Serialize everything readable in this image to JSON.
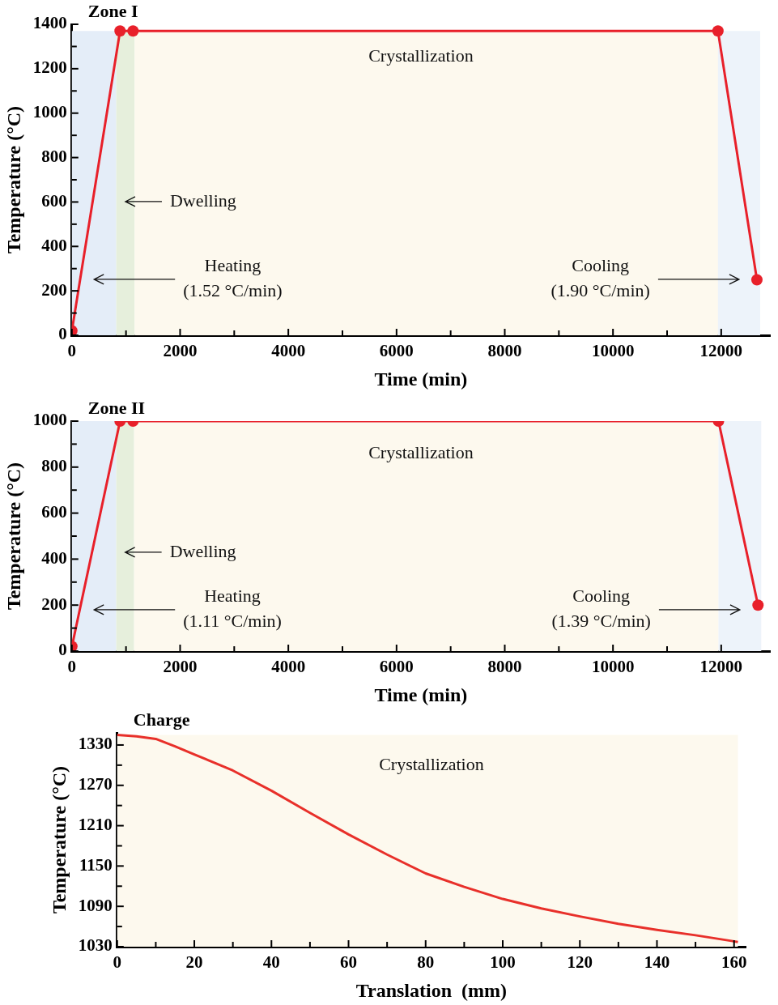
{
  "chart_data": [
    {
      "type": "line",
      "title": "Zone I",
      "xlabel": "Time (min)",
      "ylabel": "Temperature (°C)",
      "marker": "circle",
      "line_style": "solid",
      "grid": false,
      "legend": false,
      "x": [
        0,
        890,
        1130,
        11940,
        12660
      ],
      "series": [
        {
          "color": "#e8202a",
          "values": [
            20,
            1370,
            1370,
            1370,
            250
          ]
        }
      ],
      "xlim": [
        0,
        12900
      ],
      "ylim": [
        0,
        1400
      ],
      "xticks": [
        0,
        {
          "value": 1000,
          "label": null
        },
        2000,
        {
          "value": 3000,
          "label": null
        },
        4000,
        {
          "value": 5000,
          "label": null
        },
        6000,
        {
          "value": 7000,
          "label": null
        },
        8000,
        {
          "value": 9000,
          "label": null
        },
        10000,
        {
          "value": 11000,
          "label": null
        },
        12000
      ],
      "yticks": [
        0,
        {
          "value": 100,
          "label": null
        },
        200,
        {
          "value": 300,
          "label": null
        },
        400,
        {
          "value": 500,
          "label": null
        },
        600,
        {
          "value": 700,
          "label": null
        },
        800,
        {
          "value": 900,
          "label": null
        },
        1000,
        {
          "value": 1100,
          "label": null
        },
        1200,
        {
          "value": 1300,
          "label": null
        },
        1400
      ],
      "bands": [
        {
          "axis": "x",
          "from": 0,
          "to": 820,
          "color": "#e4edf8",
          "label": "Heating\n(1.52 °C/min)"
        },
        {
          "axis": "x",
          "from": 820,
          "to": 1160,
          "color": "#e6efdc",
          "label": "Dwelling"
        },
        {
          "axis": "x",
          "from": 1160,
          "to": 11940,
          "color": "#fdf9ee",
          "label": "Crystallization"
        },
        {
          "axis": "x",
          "from": 11940,
          "to": 12720,
          "color": "#edf3fa",
          "label": "Cooling\n(1.90 °C/min)"
        }
      ]
    },
    {
      "type": "line",
      "title": "Zone II",
      "xlabel": "Time (min)",
      "ylabel": "Temperature (°C)",
      "marker": "circle",
      "line_style": "solid",
      "grid": false,
      "legend": false,
      "x": [
        0,
        890,
        1130,
        11950,
        12680
      ],
      "series": [
        {
          "color": "#e8202a",
          "values": [
            20,
            1000,
            1000,
            1000,
            200
          ]
        }
      ],
      "xlim": [
        0,
        12900
      ],
      "ylim": [
        0,
        1000
      ],
      "xticks": [
        0,
        {
          "value": 1000,
          "label": null
        },
        2000,
        {
          "value": 3000,
          "label": null
        },
        4000,
        {
          "value": 5000,
          "label": null
        },
        6000,
        {
          "value": 7000,
          "label": null
        },
        8000,
        {
          "value": 9000,
          "label": null
        },
        10000,
        {
          "value": 11000,
          "label": null
        },
        12000
      ],
      "yticks": [
        0,
        {
          "value": 100,
          "label": null
        },
        200,
        {
          "value": 300,
          "label": null
        },
        400,
        {
          "value": 500,
          "label": null
        },
        600,
        {
          "value": 700,
          "label": null
        },
        800,
        {
          "value": 900,
          "label": null
        },
        1000
      ],
      "bands": [
        {
          "axis": "x",
          "from": 0,
          "to": 820,
          "color": "#e4edf8",
          "label": "Heating\n(1.11 °C/min)"
        },
        {
          "axis": "x",
          "from": 820,
          "to": 1150,
          "color": "#e6efdc",
          "label": "Dwelling"
        },
        {
          "axis": "x",
          "from": 1150,
          "to": 11950,
          "color": "#fdf9ee",
          "label": "Crystallization"
        },
        {
          "axis": "x",
          "from": 11950,
          "to": 12740,
          "color": "#edf3fa",
          "label": "Cooling\n(1.39 °C/min)"
        }
      ]
    },
    {
      "type": "line",
      "title": "Charge",
      "xlabel": "Translation  (mm)",
      "ylabel": "Temperature (°C)",
      "marker": "none",
      "line_style": "solid",
      "grid": false,
      "legend": false,
      "x": [
        0,
        5,
        10,
        15,
        20,
        30,
        40,
        50,
        60,
        70,
        80,
        90,
        100,
        110,
        120,
        130,
        140,
        150,
        160,
        161
      ],
      "series": [
        {
          "color": "#e8302a",
          "values": [
            1345,
            1343,
            1339,
            1328,
            1316,
            1292,
            1262,
            1229,
            1197,
            1167,
            1139,
            1119,
            1101,
            1087,
            1075,
            1064,
            1055,
            1047,
            1038,
            1037
          ]
        }
      ],
      "xlim": [
        0,
        163
      ],
      "ylim": [
        1030,
        1348
      ],
      "xticks": [
        0,
        {
          "value": 10,
          "label": null
        },
        20,
        {
          "value": 30,
          "label": null
        },
        40,
        {
          "value": 50,
          "label": null
        },
        60,
        {
          "value": 70,
          "label": null
        },
        80,
        {
          "value": 90,
          "label": null
        },
        100,
        {
          "value": 110,
          "label": null
        },
        120,
        {
          "value": 130,
          "label": null
        },
        140,
        {
          "value": 150,
          "label": null
        },
        160
      ],
      "yticks": [
        1030,
        {
          "value": 1060,
          "label": null
        },
        1090,
        {
          "value": 1120,
          "label": null
        },
        1150,
        {
          "value": 1180,
          "label": null
        },
        1210,
        {
          "value": 1240,
          "label": null
        },
        1270,
        {
          "value": 1300,
          "label": null
        },
        1330
      ],
      "bands": [
        {
          "axis": "x",
          "from": 0,
          "to": 161,
          "color": "#fdf9ee",
          "label": "Crystallization"
        }
      ]
    }
  ]
}
